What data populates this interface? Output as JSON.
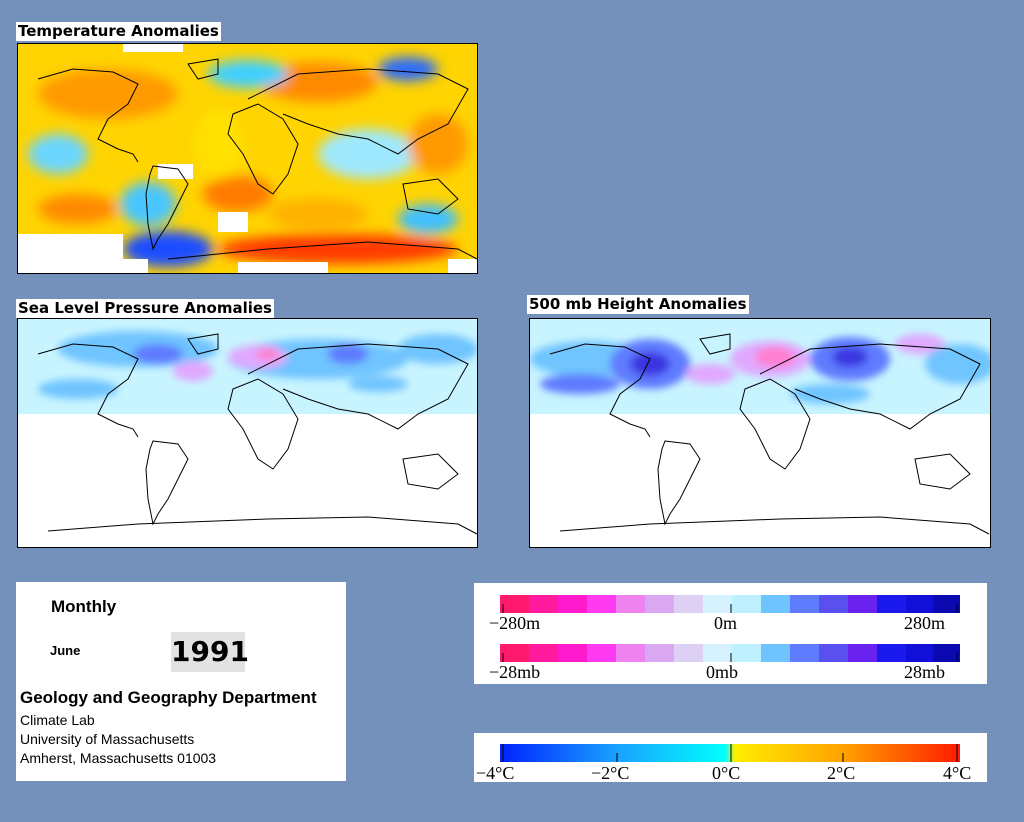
{
  "maps": {
    "temperature": {
      "title": "Temperature Anomalies"
    },
    "slp": {
      "title": "Sea Level Pressure Anomalies"
    },
    "height500": {
      "title": "500 mb Height Anomalies"
    }
  },
  "info": {
    "frequency": "Monthly",
    "month": "June",
    "year": "1991",
    "department": "Geology and Geography Department",
    "lab": "Climate Lab",
    "university": "University of Massachusetts",
    "address": "Amherst, Massachusetts 01003"
  },
  "height_scale": {
    "min_label": "−280m",
    "mid_label": "0m",
    "max_label": "280m"
  },
  "pressure_scale": {
    "min_label": "−28mb",
    "mid_label": "0mb",
    "max_label": "28mb"
  },
  "temperature_scale": {
    "labels": [
      "−4°C",
      "−2°C",
      "0°C",
      "2°C",
      "4°C"
    ]
  },
  "colors": {
    "background": "#7391bb",
    "anomaly_positive_strong": "#ff007f",
    "anomaly_negative_strong": "#0000cc",
    "temp_warm_strong": "#ff1a00",
    "temp_cold_strong": "#0022ff",
    "temp_neutral": "#00ffff"
  }
}
